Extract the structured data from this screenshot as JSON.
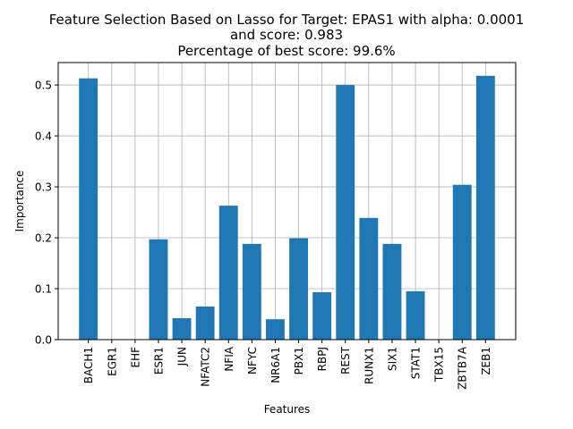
{
  "chart_data": {
    "type": "bar",
    "title_lines": [
      "Feature Selection Based on Lasso for Target: EPAS1 with alpha: 0.0001",
      "and score: 0.983",
      "Percentage of best score: 99.6%"
    ],
    "xlabel": "Features",
    "ylabel": "Importance",
    "categories": [
      "BACH1",
      "EGR1",
      "EHF",
      "ESR1",
      "JUN",
      "NFATC2",
      "NFIA",
      "NFYC",
      "NR6A1",
      "PBX1",
      "RBPJ",
      "REST",
      "RUNX1",
      "SIX1",
      "STAT1",
      "TBX15",
      "ZBTB7A",
      "ZEB1"
    ],
    "values": [
      0.513,
      0.0,
      0.0,
      0.197,
      0.042,
      0.065,
      0.263,
      0.188,
      0.04,
      0.199,
      0.093,
      0.5,
      0.239,
      0.188,
      0.095,
      0.0,
      0.304,
      0.518
    ],
    "ylim": [
      0,
      0.544
    ],
    "yticks": [
      0.0,
      0.1,
      0.2,
      0.3,
      0.4,
      0.5
    ],
    "ytick_labels": [
      "0.0",
      "0.1",
      "0.2",
      "0.3",
      "0.4",
      "0.5"
    ],
    "grid": true,
    "bar_color": "#1f77b4",
    "grid_color": "#b0b0b0"
  }
}
